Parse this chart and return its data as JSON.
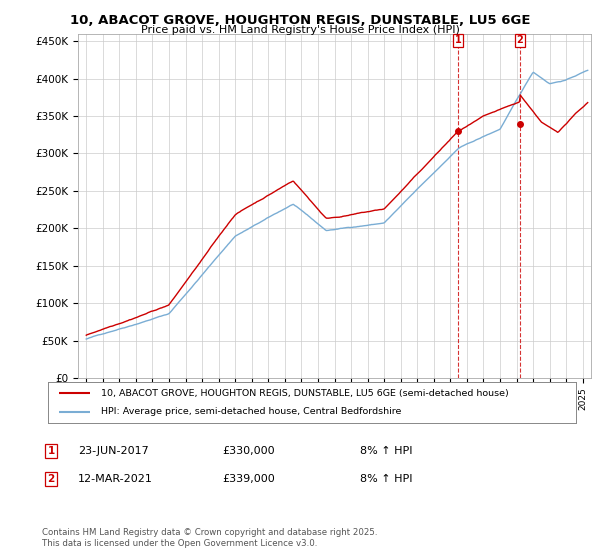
{
  "title": "10, ABACOT GROVE, HOUGHTON REGIS, DUNSTABLE, LU5 6GE",
  "subtitle": "Price paid vs. HM Land Registry's House Price Index (HPI)",
  "ylabel_ticks": [
    "£0",
    "£50K",
    "£100K",
    "£150K",
    "£200K",
    "£250K",
    "£300K",
    "£350K",
    "£400K",
    "£450K"
  ],
  "ytick_values": [
    0,
    50000,
    100000,
    150000,
    200000,
    250000,
    300000,
    350000,
    400000,
    450000
  ],
  "ylim": [
    0,
    460000
  ],
  "xlim_start": 1994.5,
  "xlim_end": 2025.5,
  "marker1_x": 2017.48,
  "marker1_y": 330000,
  "marker1_label": "1",
  "marker2_x": 2021.2,
  "marker2_y": 339000,
  "marker2_label": "2",
  "annotation1_date": "23-JUN-2017",
  "annotation1_price": "£330,000",
  "annotation1_hpi": "8% ↑ HPI",
  "annotation2_date": "12-MAR-2021",
  "annotation2_price": "£339,000",
  "annotation2_hpi": "8% ↑ HPI",
  "legend_line1": "10, ABACOT GROVE, HOUGHTON REGIS, DUNSTABLE, LU5 6GE (semi-detached house)",
  "legend_line2": "HPI: Average price, semi-detached house, Central Bedfordshire",
  "footer": "Contains HM Land Registry data © Crown copyright and database right 2025.\nThis data is licensed under the Open Government Licence v3.0.",
  "line_color": "#cc0000",
  "hpi_color": "#7aadd4",
  "background_color": "#ffffff",
  "grid_color": "#cccccc"
}
